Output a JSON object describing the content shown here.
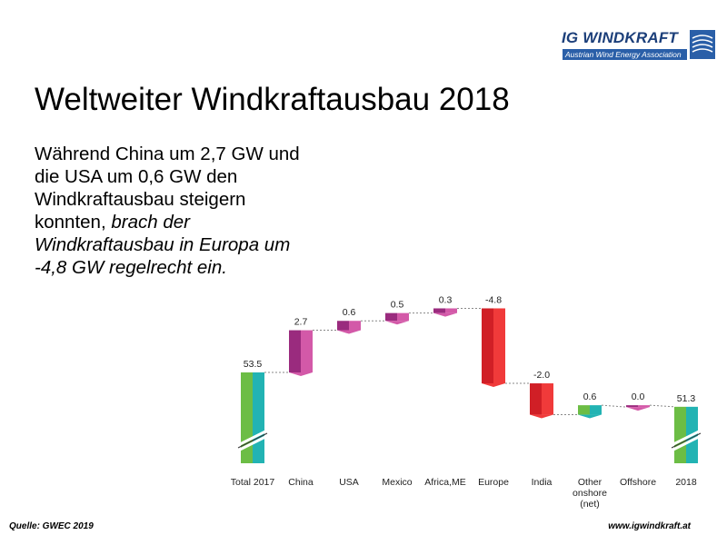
{
  "logo": {
    "name": "IG WINDKRAFT",
    "tagline": "Austrian Wind Energy Association",
    "accent": "#1c3f7a"
  },
  "title": "Weltweiter Windkraftausbau 2018",
  "lead": {
    "part1": "Während China um 2,7 GW und die USA um 0,6 GW den Windkraftausbau steigern konnten, ",
    "part2": "brach der Windkraftausbau in Europa um -4,8 GW regelrecht ein."
  },
  "chart_data": {
    "type": "bar",
    "subtype": "waterfall",
    "categories": [
      "Total 2017",
      "China",
      "USA",
      "Mexico",
      "Africa,ME",
      "Europe",
      "India",
      "Other onshore (net)",
      "Offshore",
      "2018"
    ],
    "values": [
      53.5,
      2.7,
      0.6,
      0.5,
      0.3,
      -4.8,
      -2.0,
      0.6,
      0.0,
      51.3
    ],
    "value_labels": [
      "53.5",
      "2.7",
      "0.6",
      "0.5",
      "0.3",
      "-4.8",
      "-2.0",
      "0.6",
      "0.0",
      "51.3"
    ],
    "kinds": [
      "total",
      "delta",
      "delta",
      "delta",
      "delta",
      "delta",
      "delta",
      "delta",
      "delta",
      "total"
    ],
    "axis_break": true,
    "grid": false,
    "legend": "none",
    "colors": {
      "total": [
        "#6cbd45",
        "#22b3b3"
      ],
      "increase": [
        "#9a2b7e",
        "#d359a8"
      ],
      "decrease": [
        "#d01f26",
        "#f03a3a"
      ],
      "increase_small": [
        "#6cbd45",
        "#22b3b3"
      ],
      "connector": "#888888"
    }
  },
  "source": "Quelle: GWEC 2019",
  "website": "www.igwindkraft.at"
}
